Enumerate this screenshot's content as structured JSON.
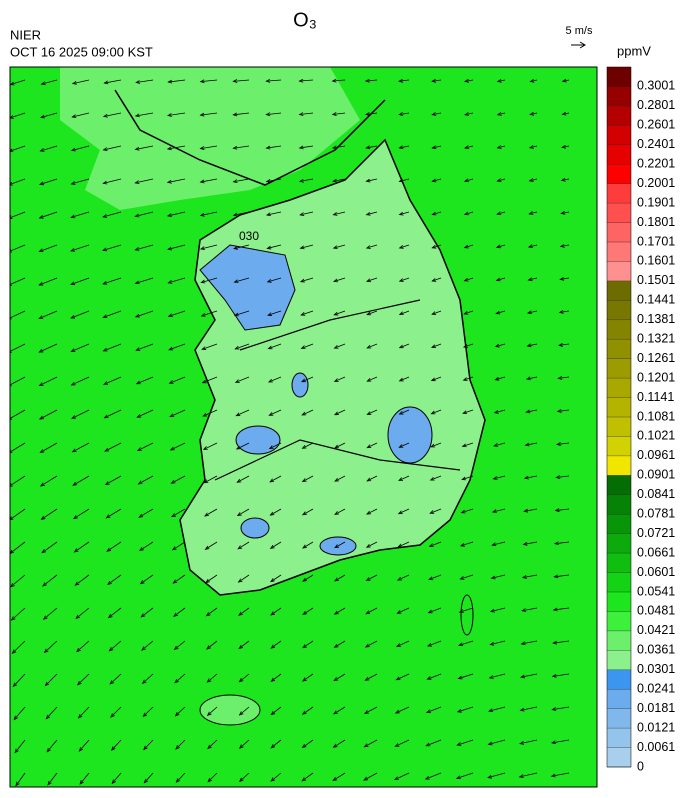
{
  "header": {
    "title": "O₃",
    "agency": "NIER",
    "timestamp": "OCT 16 2025 09:00 KST",
    "wind_scale": "5 m/s"
  },
  "map": {
    "contour_label": "030"
  },
  "colorbar": {
    "unit": "ppmV",
    "ticks": [
      0,
      0.0061,
      0.0121,
      0.0181,
      0.0241,
      0.0301,
      0.0361,
      0.0421,
      0.0481,
      0.0541,
      0.0601,
      0.0661,
      0.0721,
      0.0781,
      0.0841,
      0.0901,
      0.0961,
      0.1021,
      0.1081,
      0.1141,
      0.1201,
      0.1261,
      0.1321,
      0.1381,
      0.1441,
      0.1501,
      0.1601,
      0.1701,
      0.1801,
      0.1901,
      0.2001,
      0.2201,
      0.2401,
      0.2601,
      0.2801,
      0.3001
    ],
    "colors": [
      "#a8d0ec",
      "#94c4ec",
      "#80b8ec",
      "#6cacee",
      "#3c96f0",
      "#8cf08c",
      "#6cf06c",
      "#3cf03c",
      "#1ee61e",
      "#14d214",
      "#10be10",
      "#0caa0c",
      "#089608",
      "#068206",
      "#046e04",
      "#f0e600",
      "#d2d200",
      "#c0c000",
      "#b4b400",
      "#a8a800",
      "#9c9c00",
      "#909000",
      "#848400",
      "#787800",
      "#6c6c00",
      "#ff9090",
      "#ff7878",
      "#ff6464",
      "#ff5050",
      "#ff3c3c",
      "#ff0000",
      "#e60000",
      "#d20000",
      "#b40000",
      "#960000",
      "#6e0000"
    ]
  }
}
